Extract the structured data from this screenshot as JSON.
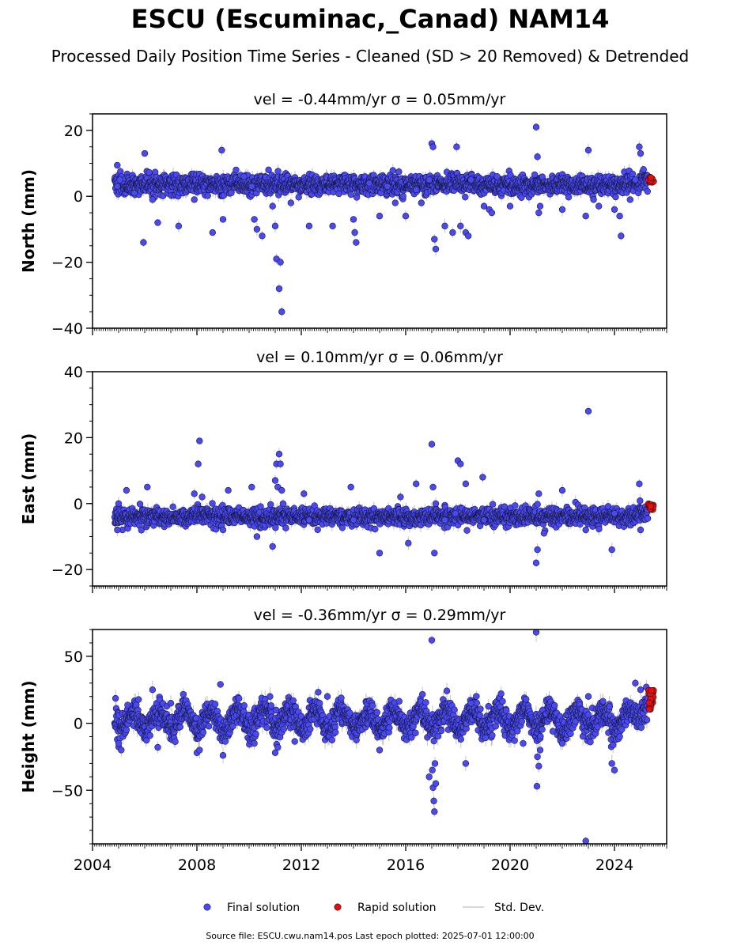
{
  "header": {
    "title": "ESCU (Escuminac,_Canad) NAM14",
    "subtitle": "Processed Daily Position Time Series - Cleaned (SD > 20 Removed) & Detrended"
  },
  "legend": {
    "placement": "bottom-center",
    "items": [
      {
        "label": "Final solution",
        "color": "#4a4af0"
      },
      {
        "label": "Rapid solution",
        "color": "#e01010"
      },
      {
        "label": "Std. Dev.",
        "color": "#c8c8c8"
      }
    ]
  },
  "footer": {
    "source": "Source file: ESCU.cwu.nam14.pos  Last epoch plotted: 2025-07-01 12:00:00"
  },
  "chart_data": [
    {
      "type": "scatter",
      "title": "vel = -0.44mm/yr   σ = 0.05mm/yr",
      "ylabel": "North (mm)",
      "xlim": [
        2004.0,
        2026.0
      ],
      "ylim": [
        -40,
        25
      ],
      "yticks": [
        -40,
        -20,
        0,
        20
      ],
      "yticks_minor_step": 5,
      "xticks": [
        2004,
        2008,
        2012,
        2016,
        2020,
        2024
      ],
      "show_x_tick_labels": false,
      "grid": false,
      "final_solution": {
        "x": [
          2004.95,
          2005.05,
          2005.6,
          2005.95,
          2006.0,
          2006.3,
          2006.5,
          2007.3,
          2007.9,
          2008.6,
          2008.95,
          2009.0,
          2009.5,
          2009.8,
          2010.1,
          2010.2,
          2010.3,
          2010.5,
          2010.9,
          2011.0,
          2011.05,
          2011.15,
          2011.2,
          2011.25,
          2011.6,
          2012.3,
          2013.2,
          2014.0,
          2014.05,
          2014.1,
          2014.6,
          2015.0,
          2015.3,
          2015.6,
          2015.9,
          2016.0,
          2016.4,
          2016.6,
          2016.9,
          2017.0,
          2017.05,
          2017.1,
          2017.15,
          2017.5,
          2017.8,
          2017.95,
          2018.1,
          2018.3,
          2018.4,
          2018.5,
          2019.0,
          2019.2,
          2019.3,
          2019.5,
          2020.0,
          2021.0,
          2021.05,
          2021.1,
          2021.15,
          2022.0,
          2022.9,
          2023.0,
          2023.2,
          2023.4,
          2024.0,
          2024.2,
          2024.25,
          2024.6,
          2024.8,
          2024.95,
          2025.0
        ],
        "y": [
          3,
          5,
          1,
          -14,
          13,
          -1,
          -8,
          -9,
          -1,
          -11,
          14,
          -7,
          8,
          6,
          3,
          -7,
          -10,
          -12,
          -3,
          -9,
          -19,
          -28,
          -20,
          -35,
          -2,
          -9,
          -9,
          -7,
          -11,
          -14,
          4,
          -6,
          3,
          -2,
          0,
          -6,
          2,
          -2,
          5,
          16,
          15,
          -13,
          -16,
          -9,
          -11,
          15,
          -9,
          -11,
          -12,
          5,
          -3,
          -4,
          -5,
          6,
          -3,
          21,
          12,
          -5,
          -3,
          -4,
          -6,
          14,
          -1,
          -3,
          -4,
          -6,
          -12,
          -1,
          5,
          15,
          13
        ],
        "baseline": 3.5,
        "scatter_sd": 1.5
      },
      "rapid_solution": {
        "x_range": [
          2025.3,
          2025.5
        ],
        "y": [
          4,
          6
        ],
        "count": 20
      },
      "std_dev": {
        "typical": 1.2
      }
    },
    {
      "type": "scatter",
      "title": "vel = 0.10mm/yr   σ = 0.06mm/yr",
      "ylabel": "East (mm)",
      "xlim": [
        2004.0,
        2026.0
      ],
      "ylim": [
        -25,
        40
      ],
      "yticks": [
        -20,
        0,
        20,
        40
      ],
      "yticks_minor_step": 5,
      "xticks": [
        2004,
        2008,
        2012,
        2016,
        2020,
        2024
      ],
      "show_x_tick_labels": false,
      "grid": false,
      "final_solution": {
        "x": [
          2004.95,
          2005.0,
          2005.3,
          2006.1,
          2007.9,
          2008.05,
          2008.1,
          2008.2,
          2009.0,
          2009.2,
          2010.1,
          2010.3,
          2010.9,
          2011.0,
          2011.05,
          2011.1,
          2011.15,
          2011.2,
          2011.25,
          2011.3,
          2012.1,
          2012.3,
          2013.9,
          2014.0,
          2015.0,
          2015.8,
          2016.1,
          2016.4,
          2017.0,
          2017.05,
          2017.1,
          2017.15,
          2017.5,
          2017.9,
          2018.0,
          2018.1,
          2018.3,
          2018.95,
          2019.0,
          2021.0,
          2021.05,
          2021.1,
          2021.3,
          2022.0,
          2022.9,
          2023.0,
          2023.9,
          2024.0,
          2024.95,
          2025.0
        ],
        "y": [
          -8,
          0,
          4,
          5,
          3,
          12,
          19,
          2,
          -8,
          4,
          5,
          -10,
          -13,
          7,
          12,
          5,
          15,
          12,
          4,
          0,
          3,
          -5,
          5,
          -5,
          -15,
          2,
          -12,
          6,
          18,
          5,
          -15,
          0,
          -5,
          -3,
          13,
          12,
          6,
          8,
          -5,
          -18,
          -14,
          3,
          -9,
          4,
          -8,
          28,
          -14,
          -3,
          6,
          -8
        ],
        "baseline": -4,
        "scatter_sd": 1.3
      },
      "rapid_solution": {
        "x_range": [
          2025.3,
          2025.5
        ],
        "y": [
          -2,
          0
        ],
        "count": 20
      },
      "std_dev": {
        "typical": 1.2
      }
    },
    {
      "type": "scatter",
      "title": "vel = -0.36mm/yr   σ = 0.29mm/yr",
      "ylabel": "Height (mm)",
      "xlabel": "",
      "xlim": [
        2004.0,
        2026.0
      ],
      "ylim": [
        -90,
        70
      ],
      "yticks": [
        -50,
        0,
        50
      ],
      "yticks_minor_step": 10,
      "xticks": [
        2004,
        2008,
        2012,
        2016,
        2020,
        2024
      ],
      "xtick_labels": [
        "2004",
        "2008",
        "2012",
        "2016",
        "2020",
        "2024"
      ],
      "show_x_tick_labels": true,
      "grid": false,
      "final_solution": {
        "x": [
          2005.0,
          2005.1,
          2005.3,
          2006.3,
          2006.5,
          2007.0,
          2008.0,
          2008.1,
          2008.9,
          2009.0,
          2010.2,
          2010.8,
          2011.0,
          2011.1,
          2013.0,
          2015.0,
          2016.9,
          2017.0,
          2017.02,
          2017.05,
          2017.08,
          2017.1,
          2017.12,
          2017.15,
          2018.3,
          2018.5,
          2020.5,
          2021.0,
          2021.03,
          2021.05,
          2021.1,
          2021.15,
          2022.0,
          2022.9,
          2023.0,
          2023.9,
          2024.0,
          2024.2,
          2024.8,
          2025.0
        ],
        "y": [
          -15,
          -20,
          -5,
          25,
          -18,
          15,
          -22,
          -20,
          29,
          -24,
          -15,
          20,
          -22,
          -18,
          20,
          -20,
          -40,
          62,
          -35,
          -48,
          -58,
          -66,
          -30,
          -45,
          -30,
          15,
          -15,
          68,
          -47,
          -25,
          -32,
          -20,
          -15,
          -88,
          20,
          -30,
          -35,
          -10,
          30,
          25
        ],
        "baseline": 3,
        "seasonal_amplitude": 7,
        "scatter_sd": 5
      },
      "rapid_solution": {
        "x_range": [
          2025.3,
          2025.5
        ],
        "y": [
          10,
          25
        ],
        "count": 22
      },
      "std_dev": {
        "typical": 4
      }
    }
  ]
}
